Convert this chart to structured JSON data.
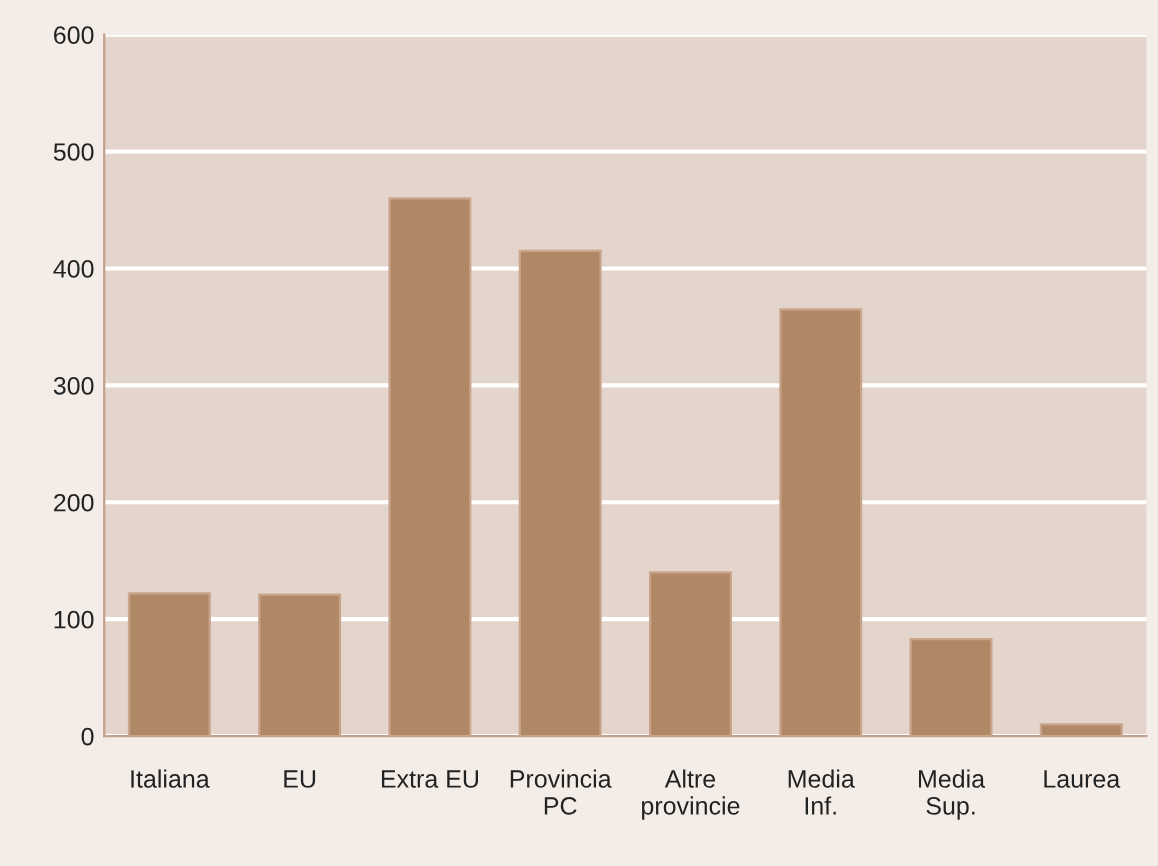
{
  "chart_data": {
    "type": "bar",
    "categories": [
      "Italiana",
      "EU",
      "Extra EU",
      "Provincia\nPC",
      "Altre\nprovincie",
      "Media\nInf.",
      "Media\nSup.",
      "Laurea"
    ],
    "values": [
      122,
      121,
      460,
      415,
      140,
      365,
      83,
      10
    ],
    "color": "#b08866",
    "ylim": [
      0,
      600
    ],
    "yticks": [
      0,
      100,
      200,
      300,
      400,
      500,
      600
    ],
    "grid": "y",
    "legend": false
  }
}
